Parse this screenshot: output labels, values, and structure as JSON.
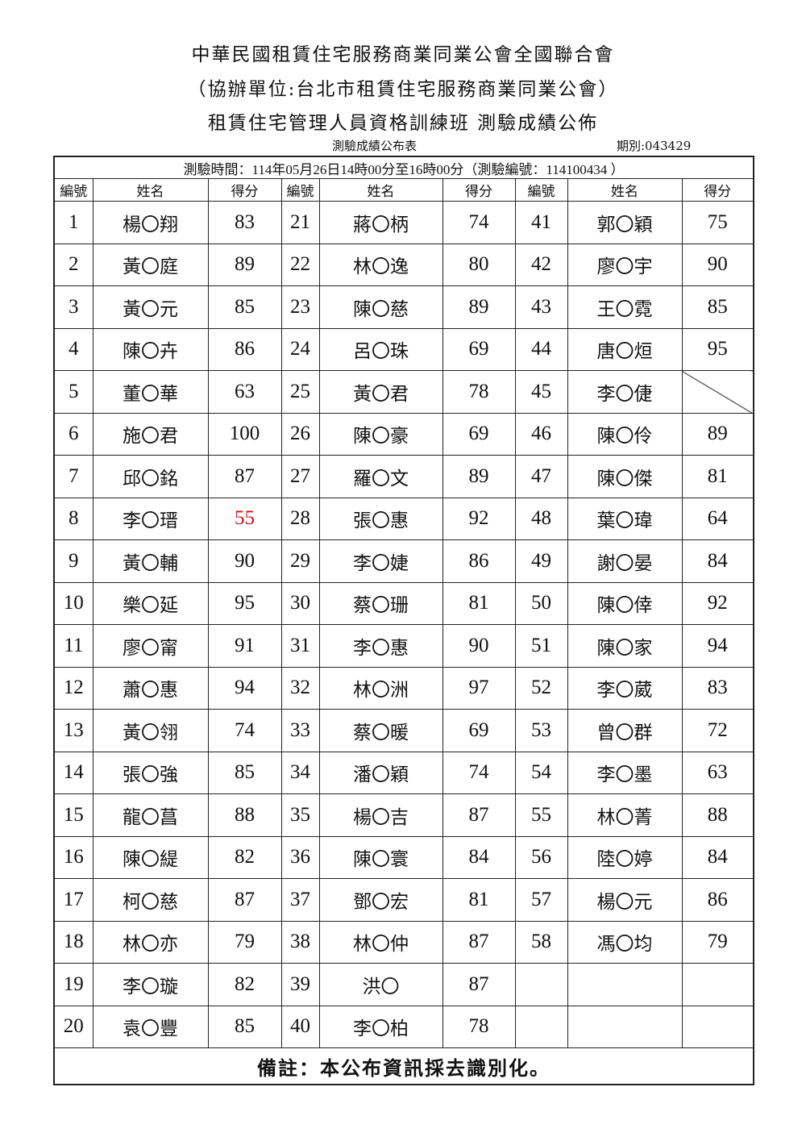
{
  "header": {
    "title1": "中華民國租賃住宅服務商業同業公會全國聯合會",
    "title2": "（協辦單位:台北市租賃住宅服務商業同業公會）",
    "title3": "租賃住宅管理人員資格訓練班 測驗成績公佈",
    "table_name": "測驗成績公布表",
    "period": "期別:043429",
    "exam_info": "測驗時間：114年05月26日14時00分至16時00分（測驗編號：114100434 ）"
  },
  "columns": {
    "no": "編號",
    "name": "姓名",
    "score": "得分"
  },
  "fail_color": "#d0101a",
  "entries": [
    {
      "no": "1",
      "name": "楊〇翔",
      "score": "83"
    },
    {
      "no": "2",
      "name": "黃〇庭",
      "score": "89"
    },
    {
      "no": "3",
      "name": "黃〇元",
      "score": "85"
    },
    {
      "no": "4",
      "name": "陳〇卉",
      "score": "86"
    },
    {
      "no": "5",
      "name": "董〇華",
      "score": "63"
    },
    {
      "no": "6",
      "name": "施〇君",
      "score": "100"
    },
    {
      "no": "7",
      "name": "邱〇銘",
      "score": "87"
    },
    {
      "no": "8",
      "name": "李〇瑨",
      "score": "55",
      "fail": true
    },
    {
      "no": "9",
      "name": "黃〇輔",
      "score": "90"
    },
    {
      "no": "10",
      "name": "樂〇延",
      "score": "95"
    },
    {
      "no": "11",
      "name": "廖〇甯",
      "score": "91"
    },
    {
      "no": "12",
      "name": "蕭〇惠",
      "score": "94"
    },
    {
      "no": "13",
      "name": "黃〇翎",
      "score": "74"
    },
    {
      "no": "14",
      "name": "張〇強",
      "score": "85"
    },
    {
      "no": "15",
      "name": "龍〇菖",
      "score": "88"
    },
    {
      "no": "16",
      "name": "陳〇緹",
      "score": "82"
    },
    {
      "no": "17",
      "name": "柯〇慈",
      "score": "87"
    },
    {
      "no": "18",
      "name": "林〇亦",
      "score": "79"
    },
    {
      "no": "19",
      "name": "李〇璇",
      "score": "82"
    },
    {
      "no": "20",
      "name": "袁〇豐",
      "score": "85"
    },
    {
      "no": "21",
      "name": "蔣〇柄",
      "score": "74"
    },
    {
      "no": "22",
      "name": "林〇逸",
      "score": "80"
    },
    {
      "no": "23",
      "name": "陳〇慈",
      "score": "89"
    },
    {
      "no": "24",
      "name": "呂〇珠",
      "score": "69"
    },
    {
      "no": "25",
      "name": "黃〇君",
      "score": "78"
    },
    {
      "no": "26",
      "name": "陳〇豪",
      "score": "69"
    },
    {
      "no": "27",
      "name": "羅〇文",
      "score": "89"
    },
    {
      "no": "28",
      "name": "張〇惠",
      "score": "92"
    },
    {
      "no": "29",
      "name": "李〇婕",
      "score": "86"
    },
    {
      "no": "30",
      "name": "蔡〇珊",
      "score": "81"
    },
    {
      "no": "31",
      "name": "李〇惠",
      "score": "90"
    },
    {
      "no": "32",
      "name": "林〇洲",
      "score": "97"
    },
    {
      "no": "33",
      "name": "蔡〇暖",
      "score": "69"
    },
    {
      "no": "34",
      "name": "潘〇穎",
      "score": "74"
    },
    {
      "no": "35",
      "name": "楊〇吉",
      "score": "87"
    },
    {
      "no": "36",
      "name": "陳〇寰",
      "score": "84"
    },
    {
      "no": "37",
      "name": "鄧〇宏",
      "score": "81"
    },
    {
      "no": "38",
      "name": "林〇仲",
      "score": "87"
    },
    {
      "no": "39",
      "name": "洪〇",
      "score": "87"
    },
    {
      "no": "40",
      "name": "李〇柏",
      "score": "78"
    },
    {
      "no": "41",
      "name": "郭〇穎",
      "score": "75"
    },
    {
      "no": "42",
      "name": "廖〇宇",
      "score": "90"
    },
    {
      "no": "43",
      "name": "王〇霓",
      "score": "85"
    },
    {
      "no": "44",
      "name": "唐〇烜",
      "score": "95"
    },
    {
      "no": "45",
      "name": "李〇倢",
      "score": "",
      "absent": true
    },
    {
      "no": "46",
      "name": "陳〇伶",
      "score": "89"
    },
    {
      "no": "47",
      "name": "陳〇傑",
      "score": "81"
    },
    {
      "no": "48",
      "name": "葉〇瑋",
      "score": "64"
    },
    {
      "no": "49",
      "name": "謝〇晏",
      "score": "84"
    },
    {
      "no": "50",
      "name": "陳〇倖",
      "score": "92"
    },
    {
      "no": "51",
      "name": "陳〇家",
      "score": "94"
    },
    {
      "no": "52",
      "name": "李〇葳",
      "score": "83"
    },
    {
      "no": "53",
      "name": "曾〇群",
      "score": "72"
    },
    {
      "no": "54",
      "name": "李〇墨",
      "score": "63"
    },
    {
      "no": "55",
      "name": "林〇菁",
      "score": "88"
    },
    {
      "no": "56",
      "name": "陸〇婷",
      "score": "84"
    },
    {
      "no": "57",
      "name": "楊〇元",
      "score": "86"
    },
    {
      "no": "58",
      "name": "馮〇均",
      "score": "79"
    }
  ],
  "footer": {
    "note": "備註：本公布資訊採去識別化。"
  }
}
